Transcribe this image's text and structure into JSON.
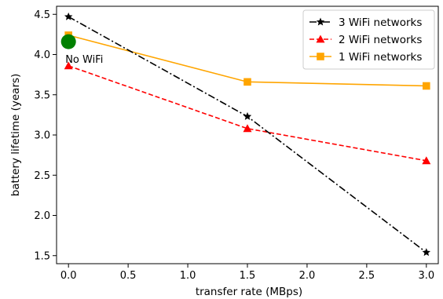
{
  "chart_data": {
    "type": "line",
    "title": "",
    "xlabel": "transfer rate (MBps)",
    "ylabel": "battery lifetime (years)",
    "xlim": [
      -0.1,
      3.1
    ],
    "ylim": [
      1.4,
      4.6
    ],
    "xticks": [
      0.0,
      0.5,
      1.0,
      1.5,
      2.0,
      2.5,
      3.0
    ],
    "xtick_labels": [
      "0.0",
      "0.5",
      "1.0",
      "1.5",
      "2.0",
      "2.5",
      "3.0"
    ],
    "yticks": [
      1.5,
      2.0,
      2.5,
      3.0,
      3.5,
      4.0,
      4.5
    ],
    "ytick_labels": [
      "1.5",
      "2.0",
      "2.5",
      "3.0",
      "3.5",
      "4.0",
      "4.5"
    ],
    "grid": false,
    "legend_position": "top-right",
    "series": [
      {
        "name": "3 WiFi networks",
        "x": [
          0.0,
          1.5,
          3.0
        ],
        "y": [
          4.47,
          3.23,
          1.54
        ],
        "color": "#000000",
        "line_style": "dash-dot",
        "marker": "star"
      },
      {
        "name": "2 WiFi networks",
        "x": [
          0.0,
          1.5,
          3.0
        ],
        "y": [
          3.86,
          3.08,
          2.68
        ],
        "color": "#ff0000",
        "line_style": "dashed",
        "marker": "triangle"
      },
      {
        "name": "1 WiFi networks",
        "x": [
          0.0,
          1.5,
          3.0
        ],
        "y": [
          4.24,
          3.66,
          3.61
        ],
        "color": "#ffa500",
        "line_style": "solid",
        "marker": "square"
      }
    ],
    "annotations": [
      {
        "text": "No WiFi",
        "x": 0.0,
        "y": 4.16,
        "color": "#008000",
        "marker": "circle"
      }
    ]
  }
}
